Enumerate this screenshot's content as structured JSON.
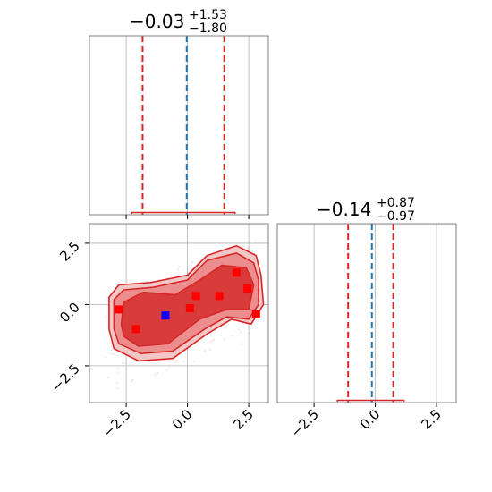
{
  "colors": {
    "contour": "#d62728",
    "contour_fill": "#d62728",
    "quantile_line": "#d62728",
    "median_line": "#1f77b4",
    "points": "#ff0000",
    "truth_point": "#0000ff",
    "grid": "#b0b0b0",
    "frame": "#808080"
  },
  "chart_data": [
    {
      "panel": "marginal-param-1",
      "type": "line",
      "title_value": "−0.03",
      "title_upper": "+1.53",
      "title_lower": "−1.80",
      "median": -0.03,
      "quantiles": [
        -1.83,
        1.5
      ],
      "xlim": [
        -4,
        3.3
      ],
      "xticks": [
        -2.5,
        0.0,
        2.5
      ],
      "grid": true
    },
    {
      "panel": "marginal-param-2",
      "type": "line",
      "title_value": "−0.14",
      "title_upper": "+0.87",
      "title_lower": "−0.97",
      "median": -0.14,
      "quantiles": [
        -1.11,
        0.73
      ],
      "xlim": [
        -4,
        3.3
      ],
      "xticks": [
        -2.5,
        0.0,
        2.5
      ],
      "xtick_labels": [
        "−2.5",
        "0.0",
        "2.5"
      ],
      "grid": true
    },
    {
      "panel": "joint-param-1-param-2",
      "type": "scatter",
      "xlim": [
        -4,
        3.3
      ],
      "ylim": [
        -4,
        3.3
      ],
      "xticks": [
        -2.5,
        0.0,
        2.5
      ],
      "yticks": [
        -2.5,
        0.0,
        2.5
      ],
      "xtick_labels": [
        "−2.5",
        "0.0",
        "2.5"
      ],
      "ytick_labels": [
        "−2.5",
        "0.0",
        "2.5"
      ],
      "grid": true,
      "contour_levels": [
        [
          [
            -3.2,
            -1.0
          ],
          [
            -3.2,
            0.3
          ],
          [
            -2.8,
            0.8
          ],
          [
            -1.5,
            0.9
          ],
          [
            0.0,
            1.2
          ],
          [
            0.8,
            2.0
          ],
          [
            2.0,
            2.4
          ],
          [
            2.8,
            2.0
          ],
          [
            3.0,
            1.2
          ],
          [
            3.1,
            0.0
          ],
          [
            2.6,
            -0.8
          ],
          [
            1.8,
            -0.6
          ],
          [
            0.8,
            -1.2
          ],
          [
            -0.6,
            -2.2
          ],
          [
            -2.0,
            -2.3
          ],
          [
            -3.0,
            -1.8
          ]
        ],
        [
          [
            -3.0,
            -1.0
          ],
          [
            -3.0,
            0.2
          ],
          [
            -2.6,
            0.6
          ],
          [
            -1.4,
            0.7
          ],
          [
            0.0,
            1.0
          ],
          [
            0.8,
            1.8
          ],
          [
            2.0,
            2.1
          ],
          [
            2.7,
            1.7
          ],
          [
            2.9,
            1.0
          ],
          [
            2.9,
            0.0
          ],
          [
            2.5,
            -0.6
          ],
          [
            1.6,
            -0.5
          ],
          [
            0.7,
            -1.0
          ],
          [
            -0.6,
            -1.9
          ],
          [
            -1.9,
            -2.0
          ],
          [
            -2.8,
            -1.6
          ]
        ],
        [
          [
            -2.7,
            -0.8
          ],
          [
            -2.6,
            0.1
          ],
          [
            -1.8,
            0.5
          ],
          [
            -0.5,
            0.4
          ],
          [
            0.5,
            1.0
          ],
          [
            1.4,
            1.6
          ],
          [
            2.4,
            1.5
          ],
          [
            2.7,
            0.8
          ],
          [
            2.5,
            -0.2
          ],
          [
            1.6,
            -0.2
          ],
          [
            0.5,
            -0.6
          ],
          [
            -0.8,
            -1.6
          ],
          [
            -2.0,
            -1.7
          ],
          [
            -2.6,
            -1.3
          ]
        ]
      ],
      "points": [
        {
          "x": -2.8,
          "y": -0.2
        },
        {
          "x": -2.1,
          "y": -1.0
        },
        {
          "x": 0.1,
          "y": -0.15
        },
        {
          "x": 0.35,
          "y": 0.35
        },
        {
          "x": 1.3,
          "y": 0.35
        },
        {
          "x": 2.0,
          "y": 1.3
        },
        {
          "x": 2.45,
          "y": 0.65
        },
        {
          "x": 2.8,
          "y": -0.4
        }
      ],
      "truth_point": {
        "x": -0.9,
        "y": -0.45
      }
    }
  ]
}
